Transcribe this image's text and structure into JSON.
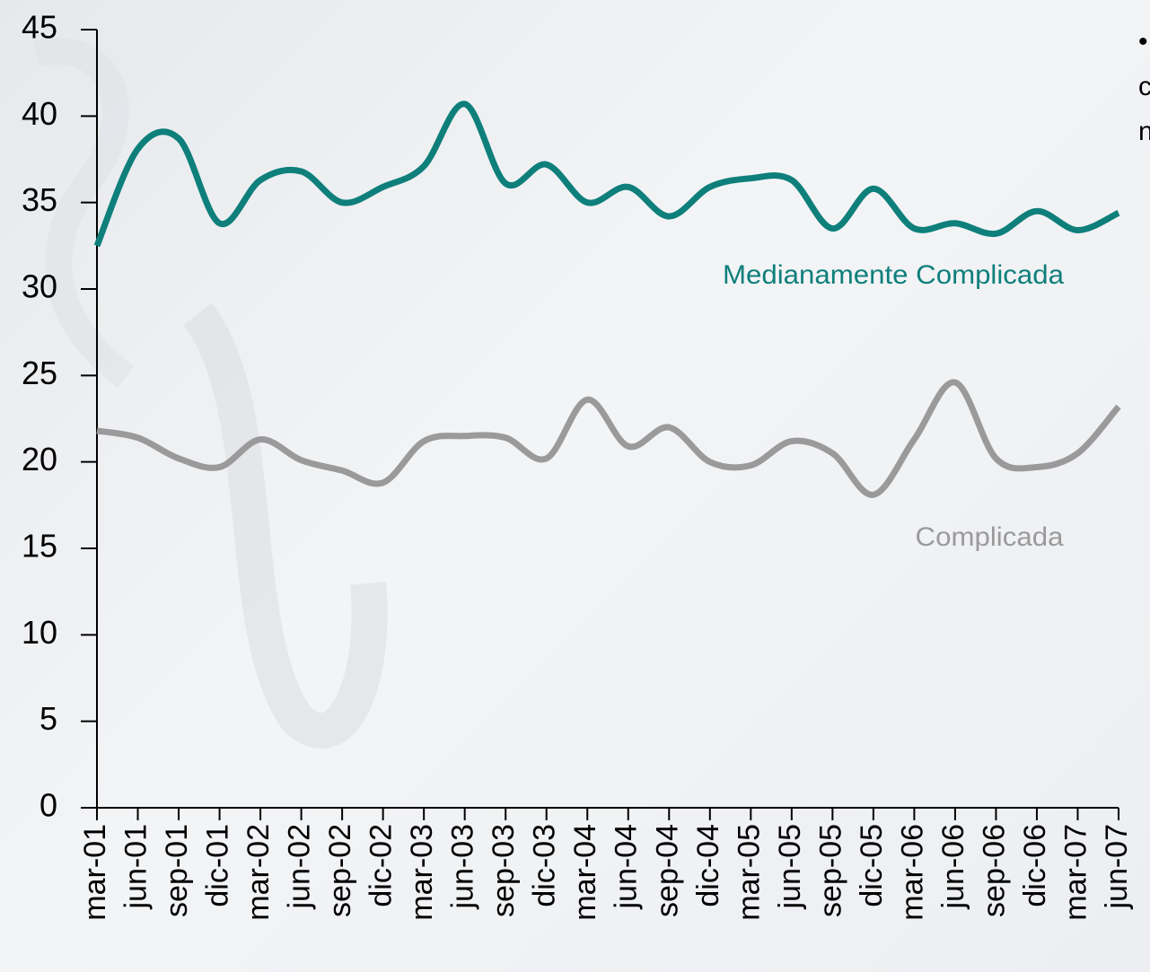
{
  "chart_data": {
    "type": "line",
    "categories": [
      "mar-01",
      "jun-01",
      "sep-01",
      "dic-01",
      "mar-02",
      "jun-02",
      "sep-02",
      "dic-02",
      "mar-03",
      "jun-03",
      "sep-03",
      "dic-03",
      "mar-04",
      "jun-04",
      "sep-04",
      "dic-04",
      "mar-05",
      "jun-05",
      "sep-05",
      "dic-05",
      "mar-06",
      "jun-06",
      "sep-06",
      "dic-06",
      "mar-07",
      "jun-07"
    ],
    "series": [
      {
        "name": "Medianamente Complicada",
        "color": "#0e7f7b",
        "values": [
          32.5,
          38.1,
          38.7,
          33.8,
          36.3,
          36.8,
          35.0,
          35.9,
          37.1,
          40.7,
          36.1,
          37.2,
          35.0,
          35.9,
          34.2,
          35.9,
          36.4,
          36.3,
          33.5,
          35.8,
          33.5,
          33.8,
          33.2,
          34.5,
          33.4,
          34.4
        ]
      },
      {
        "name": "Complicada",
        "color": "#9a9a9a",
        "values": [
          21.8,
          21.4,
          20.2,
          19.7,
          21.3,
          20.1,
          19.5,
          18.8,
          21.2,
          21.5,
          21.4,
          20.2,
          23.6,
          20.9,
          22.0,
          20.0,
          19.8,
          21.2,
          20.5,
          18.1,
          21.3,
          24.6,
          20.2,
          19.7,
          20.5,
          23.2
        ]
      }
    ],
    "ylim": [
      0,
      45
    ],
    "yticks": [
      0,
      5,
      10,
      15,
      20,
      25,
      30,
      35,
      40,
      45
    ],
    "annotations": [
      "•",
      "c",
      "n"
    ]
  }
}
